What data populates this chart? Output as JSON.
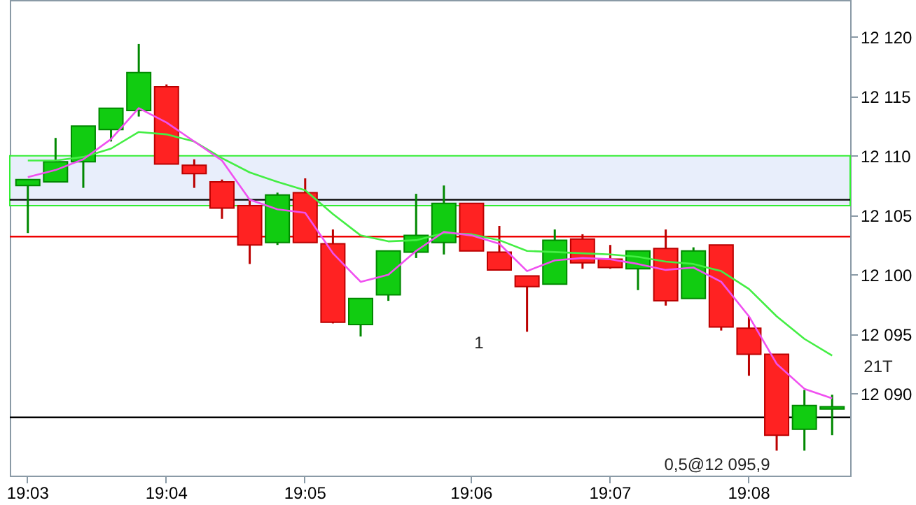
{
  "chart_data": {
    "type": "candlestick",
    "categories": [
      "19:03",
      null,
      null,
      null,
      null,
      "19:04",
      null,
      null,
      null,
      null,
      "19:05",
      null,
      null,
      null,
      null,
      null,
      "19:06",
      null,
      null,
      null,
      null,
      "19:07",
      null,
      null,
      null,
      null,
      "19:08",
      null,
      null,
      null
    ],
    "ohlc": [
      [
        12107.5,
        12108.0,
        12103.5,
        12108.0
      ],
      [
        12107.8,
        12111.5,
        12107.8,
        12109.5
      ],
      [
        12109.5,
        12112.5,
        12107.3,
        12112.5
      ],
      [
        12112.2,
        12114.0,
        12111.2,
        12114.0
      ],
      [
        12113.8,
        12119.4,
        12113.3,
        12117.0
      ],
      [
        12115.8,
        12116.0,
        12109.3,
        12109.3
      ],
      [
        12109.2,
        12109.7,
        12107.3,
        12108.5
      ],
      [
        12107.8,
        12108.0,
        12104.7,
        12105.6
      ],
      [
        12105.8,
        12106.4,
        12100.9,
        12102.5
      ],
      [
        12102.7,
        12106.9,
        12102.5,
        12106.7
      ],
      [
        12106.9,
        12108.1,
        12102.7,
        12102.7
      ],
      [
        12102.6,
        12103.8,
        12095.9,
        12096.0
      ],
      [
        12095.8,
        12098.0,
        12094.8,
        12098.0
      ],
      [
        12098.3,
        12102.0,
        12097.8,
        12102.0
      ],
      [
        12101.9,
        12106.8,
        12101.4,
        12103.3
      ],
      [
        12102.7,
        12107.5,
        12101.7,
        12106.0
      ],
      [
        12106.0,
        12106.0,
        12102.0,
        12102.0
      ],
      [
        12101.9,
        12104.1,
        12100.4,
        12100.4
      ],
      [
        12099.9,
        12099.9,
        12095.2,
        12099.0
      ],
      [
        12099.2,
        12103.8,
        12099.2,
        12102.9
      ],
      [
        12103.0,
        12103.4,
        12100.5,
        12101.0
      ],
      [
        12101.3,
        12102.5,
        12100.5,
        12100.6
      ],
      [
        12100.5,
        12102.0,
        12098.7,
        12102.0
      ],
      [
        12102.2,
        12103.8,
        12097.4,
        12097.8
      ],
      [
        12098.0,
        12102.3,
        12098.0,
        12102.0
      ],
      [
        12102.5,
        12102.5,
        12095.3,
        12095.6
      ],
      [
        12095.5,
        12096.5,
        12091.5,
        12093.3
      ],
      [
        12093.3,
        12093.3,
        12085.2,
        12086.5
      ],
      [
        12087.0,
        12090.3,
        12085.2,
        12089.0
      ],
      [
        12088.7,
        12089.9,
        12086.5,
        12088.9
      ]
    ],
    "series": [
      {
        "type": "line",
        "color": "#44ee44",
        "values": [
          12109.6,
          12109.6,
          12109.9,
          12110.6,
          12112.0,
          12111.8,
          12111.2,
          12109.8,
          12108.6,
          12107.8,
          12107.1,
          12105.1,
          12103.3,
          12102.8,
          12102.9,
          12103.5,
          12103.4,
          12102.9,
          12102.0,
          12101.9,
          12101.8,
          12101.7,
          12101.5,
          12101.1,
          12100.9,
          12100.3,
          12098.8,
          12096.5,
          12094.6,
          12093.2
        ]
      },
      {
        "type": "line",
        "color": "#f050f0",
        "values": [
          12108.2,
          12108.8,
          12109.7,
          12111.4,
          12114.0,
          12112.8,
          12111.2,
          12109.6,
          12106.3,
          12105.5,
          12105.2,
          12101.8,
          12099.4,
          12100.0,
          12102.0,
          12103.6,
          12103.3,
          12102.6,
          12100.3,
          12101.2,
          12101.4,
          12101.3,
          12100.9,
          12100.4,
          12100.6,
          12099.4,
          12096.5,
          12092.5,
          12090.4,
          12089.6
        ]
      }
    ],
    "ylim": [
      12083.1,
      12123.1
    ],
    "yticks": [
      {
        "value": 12090,
        "label": "12 090"
      },
      {
        "value": 12095,
        "label": "12 095"
      },
      {
        "value": 12100,
        "label": "12 100"
      },
      {
        "value": 12105,
        "label": "12 105"
      },
      {
        "value": 12110,
        "label": "12 110"
      },
      {
        "value": 12115,
        "label": "12 115"
      },
      {
        "value": 12120,
        "label": "12 120"
      }
    ],
    "ref_lines": [
      {
        "axis": "y",
        "value": 12106.3,
        "color": "#000000"
      },
      {
        "axis": "y",
        "value": 12103.2,
        "color": "#ee0000"
      },
      {
        "axis": "y",
        "value": 12088.0,
        "color": "#000000"
      }
    ],
    "bands": [
      {
        "axis": "y",
        "from": 12105.8,
        "to": 12110.0,
        "color": "#e8eefb"
      }
    ],
    "annotations": [
      "1",
      "21T",
      "0,5@12 095,9"
    ],
    "grid": false
  }
}
